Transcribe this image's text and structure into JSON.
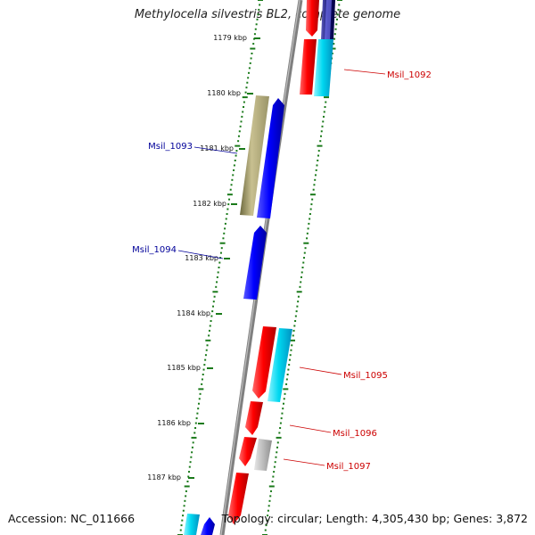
{
  "title": "Methylocella silvestris BL2, complete genome",
  "footer": {
    "accession": "Accession: NC_011666",
    "topology": "Topology: circular; Length: 4,305,430 bp; Genes: 3,872"
  },
  "ticks": [
    "1179 kbp",
    "1180 kbp",
    "1181 kbp",
    "1182 kbp",
    "1183 kbp",
    "1184 kbp",
    "1185 kbp",
    "1186 kbp",
    "1187 kbp"
  ],
  "gene_labels": [
    {
      "name": "Msil_1092",
      "strand": "forward"
    },
    {
      "name": "Msil_1093",
      "strand": "reverse"
    },
    {
      "name": "Msil_1094",
      "strand": "reverse"
    },
    {
      "name": "Msil_1095",
      "strand": "forward"
    },
    {
      "name": "Msil_1096",
      "strand": "forward"
    },
    {
      "name": "Msil_1097",
      "strand": "forward"
    }
  ],
  "colors": {
    "backbone": "#808080",
    "tick": "#1a7a1a",
    "forward_cds": "#ff0000",
    "reverse_cds": "#0000ff",
    "cyan_feature": "#00d8f0",
    "olive_feature": "#b0a86c",
    "grey_feature": "#b8b8b8",
    "forward_label": "#cc0000",
    "reverse_label": "#000099"
  }
}
